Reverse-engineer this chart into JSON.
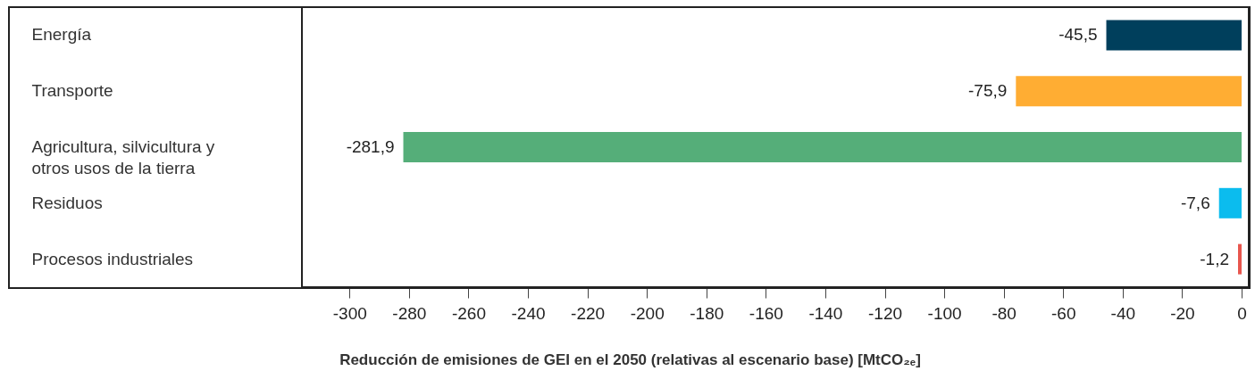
{
  "chart_data": {
    "type": "bar",
    "orientation": "horizontal",
    "xlabel": "Reducción de emisiones de GEI en el 2050 (relativas al escenario base) [MtCO₂ₑ]",
    "categories": [
      "Energía",
      "Transporte",
      "Agricultura, silvicultura y otros usos de la tierra",
      "Residuos",
      "Procesos industriales"
    ],
    "values": [
      -45.5,
      -75.9,
      -281.9,
      -7.6,
      -1.2
    ],
    "value_labels": [
      "-45,5",
      "-75,9",
      "-281,9",
      "-7,6",
      "-1,2"
    ],
    "colors": [
      "#003f5c",
      "#ffad33",
      "#55ae79",
      "#0bbcee",
      "#e8564e"
    ],
    "xlim": [
      -316,
      2.4
    ],
    "xticks": [
      -300,
      -280,
      -260,
      -240,
      -220,
      -200,
      -180,
      -160,
      -140,
      -120,
      -100,
      -80,
      -60,
      -40,
      -20,
      0
    ],
    "grid": false
  }
}
